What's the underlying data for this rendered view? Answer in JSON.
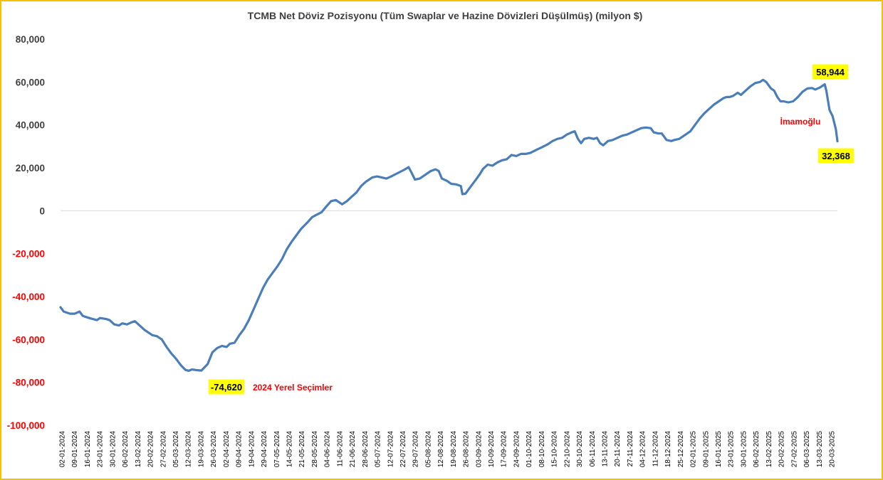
{
  "chart_data": {
    "type": "line",
    "title": "TCMB Net Döviz Pozisyonu (Tüm Swaplar ve Hazine Dövizleri Düşülmüş) (milyon $)",
    "xlabel": "",
    "ylabel": "",
    "ylim": [
      -100000,
      80000
    ],
    "y_ticks": [
      {
        "value": 80000,
        "label": "80,000"
      },
      {
        "value": 60000,
        "label": "60,000"
      },
      {
        "value": 40000,
        "label": "40,000"
      },
      {
        "value": 20000,
        "label": "20,000"
      },
      {
        "value": 0,
        "label": "0"
      },
      {
        "value": -20000,
        "label": "-20,000"
      },
      {
        "value": -40000,
        "label": "-40,000"
      },
      {
        "value": -60000,
        "label": "-60,000"
      },
      {
        "value": -80000,
        "label": "-80,000"
      },
      {
        "value": -100000,
        "label": "-100,000"
      }
    ],
    "x_ticks": [
      "02-01-2024",
      "09-01-2024",
      "16-01-2024",
      "23-01-2024",
      "30-01-2024",
      "06-02-2024",
      "13-02-2024",
      "20-02-2024",
      "27-02-2024",
      "05-03-2024",
      "12-03-2024",
      "19-03-2024",
      "26-03-2024",
      "02-04-2024",
      "09-04-2024",
      "19-04-2024",
      "29-04-2024",
      "07-05-2024",
      "14-05-2024",
      "21-05-2024",
      "28-05-2024",
      "04-06-2024",
      "11-06-2024",
      "21-06-2024",
      "28-06-2024",
      "05-07-2024",
      "12-07-2024",
      "22-07-2024",
      "29-07-2024",
      "05-08-2024",
      "12-08-2024",
      "19-08-2024",
      "26-08-2024",
      "03-09-2024",
      "10-09-2024",
      "17-09-2024",
      "24-09-2024",
      "01-10-2024",
      "08-10-2024",
      "15-10-2024",
      "22-10-2024",
      "30-10-2024",
      "06-11-2024",
      "13-11-2024",
      "20-11-2024",
      "27-11-2024",
      "04-12-2024",
      "11-12-2024",
      "18-12-2024",
      "25-12-2024",
      "02-01-2025",
      "09-01-2025",
      "16-01-2025",
      "23-01-2025",
      "30-01-2025",
      "06-02-2025",
      "13-02-2025",
      "20-02-2025",
      "27-02-2025",
      "06-03-2025",
      "13-03-2025",
      "20-03-2025"
    ],
    "gridlines": false,
    "zero_line": true,
    "series": [
      {
        "color": "#4a7ebb",
        "points": [
          [
            "02-01-2024",
            -45000
          ],
          [
            "04-01-2024",
            -47000
          ],
          [
            "08-01-2024",
            -48000
          ],
          [
            "11-01-2024",
            -48000
          ],
          [
            "14-01-2024",
            -47000
          ],
          [
            "16-01-2024",
            -49000
          ],
          [
            "18-01-2024",
            -49500
          ],
          [
            "21-01-2024",
            -50200
          ],
          [
            "25-01-2024",
            -51000
          ],
          [
            "27-01-2024",
            -50000
          ],
          [
            "31-01-2024",
            -50500
          ],
          [
            "02-02-2024",
            -51000
          ],
          [
            "05-02-2024",
            -53000
          ],
          [
            "08-02-2024",
            -53500
          ],
          [
            "10-02-2024",
            -52500
          ],
          [
            "13-02-2024",
            -53000
          ],
          [
            "16-02-2024",
            -52000
          ],
          [
            "18-02-2024",
            -51500
          ],
          [
            "21-02-2024",
            -53500
          ],
          [
            "24-02-2024",
            -55500
          ],
          [
            "27-02-2024",
            -57000
          ],
          [
            "29-02-2024",
            -58000
          ],
          [
            "03-03-2024",
            -58500
          ],
          [
            "06-03-2024",
            -60000
          ],
          [
            "09-03-2024",
            -63500
          ],
          [
            "12-03-2024",
            -66500
          ],
          [
            "15-03-2024",
            -69000
          ],
          [
            "18-03-2024",
            -72000
          ],
          [
            "21-03-2024",
            -74200
          ],
          [
            "23-03-2024",
            -74620
          ],
          [
            "25-03-2024",
            -74000
          ],
          [
            "28-03-2024",
            -74300
          ],
          [
            "31-03-2024",
            -74500
          ],
          [
            "04-04-2024",
            -71500
          ],
          [
            "07-04-2024",
            -66000
          ],
          [
            "10-04-2024",
            -64000
          ],
          [
            "13-04-2024",
            -63000
          ],
          [
            "16-04-2024",
            -63500
          ],
          [
            "18-04-2024",
            -62000
          ],
          [
            "21-04-2024",
            -61500
          ],
          [
            "24-04-2024",
            -58000
          ],
          [
            "27-04-2024",
            -55000
          ],
          [
            "30-04-2024",
            -51000
          ],
          [
            "03-05-2024",
            -46000
          ],
          [
            "06-05-2024",
            -41000
          ],
          [
            "09-05-2024",
            -36000
          ],
          [
            "12-05-2024",
            -32000
          ],
          [
            "15-05-2024",
            -29000
          ],
          [
            "18-05-2024",
            -26000
          ],
          [
            "21-05-2024",
            -22500
          ],
          [
            "24-05-2024",
            -18000
          ],
          [
            "27-05-2024",
            -14500
          ],
          [
            "30-05-2024",
            -11500
          ],
          [
            "02-06-2024",
            -8500
          ],
          [
            "06-06-2024",
            -5500
          ],
          [
            "09-06-2024",
            -3000
          ],
          [
            "12-06-2024",
            -1800
          ],
          [
            "15-06-2024",
            -700
          ],
          [
            "18-06-2024",
            2000
          ],
          [
            "21-06-2024",
            4500
          ],
          [
            "24-06-2024",
            5000
          ],
          [
            "26-06-2024",
            4000
          ],
          [
            "28-06-2024",
            3000
          ],
          [
            "01-07-2024",
            4500
          ],
          [
            "04-07-2024",
            6500
          ],
          [
            "07-07-2024",
            8500
          ],
          [
            "10-07-2024",
            11500
          ],
          [
            "13-07-2024",
            13500
          ],
          [
            "17-07-2024",
            15500
          ],
          [
            "20-07-2024",
            16000
          ],
          [
            "23-07-2024",
            15500
          ],
          [
            "26-07-2024",
            15000
          ],
          [
            "29-07-2024",
            16000
          ],
          [
            "02-08-2024",
            17500
          ],
          [
            "06-08-2024",
            19000
          ],
          [
            "09-08-2024",
            20300
          ],
          [
            "11-08-2024",
            17500
          ],
          [
            "13-08-2024",
            14500
          ],
          [
            "16-08-2024",
            15000
          ],
          [
            "19-08-2024",
            16500
          ],
          [
            "23-08-2024",
            18500
          ],
          [
            "26-08-2024",
            19300
          ],
          [
            "28-08-2024",
            18500
          ],
          [
            "30-08-2024",
            15000
          ],
          [
            "02-09-2024",
            14000
          ],
          [
            "05-09-2024",
            12500
          ],
          [
            "08-09-2024",
            12300
          ],
          [
            "11-09-2024",
            11500
          ],
          [
            "12-09-2024",
            7700
          ],
          [
            "14-09-2024",
            8000
          ],
          [
            "17-09-2024",
            11000
          ],
          [
            "20-09-2024",
            14000
          ],
          [
            "23-09-2024",
            17000
          ],
          [
            "25-09-2024",
            19500
          ],
          [
            "28-09-2024",
            21500
          ],
          [
            "01-10-2024",
            21000
          ],
          [
            "04-10-2024",
            22500
          ],
          [
            "07-10-2024",
            23500
          ],
          [
            "10-10-2024",
            24000
          ],
          [
            "13-10-2024",
            26000
          ],
          [
            "16-10-2024",
            25500
          ],
          [
            "19-10-2024",
            26500
          ],
          [
            "22-10-2024",
            26500
          ],
          [
            "25-10-2024",
            27000
          ],
          [
            "29-10-2024",
            28500
          ],
          [
            "01-11-2024",
            29500
          ],
          [
            "05-11-2024",
            31000
          ],
          [
            "08-11-2024",
            32500
          ],
          [
            "11-11-2024",
            33500
          ],
          [
            "14-11-2024",
            34000
          ],
          [
            "17-11-2024",
            35500
          ],
          [
            "20-11-2024",
            36500
          ],
          [
            "22-11-2024",
            37000
          ],
          [
            "24-11-2024",
            33500
          ],
          [
            "26-11-2024",
            31500
          ],
          [
            "28-11-2024",
            33500
          ],
          [
            "01-12-2024",
            34000
          ],
          [
            "04-12-2024",
            33500
          ],
          [
            "06-12-2024",
            34000
          ],
          [
            "08-12-2024",
            31500
          ],
          [
            "10-12-2024",
            30500
          ],
          [
            "13-12-2024",
            32500
          ],
          [
            "16-12-2024",
            33000
          ],
          [
            "19-12-2024",
            34000
          ],
          [
            "22-12-2024",
            35000
          ],
          [
            "25-12-2024",
            35500
          ],
          [
            "28-12-2024",
            36500
          ],
          [
            "31-12-2024",
            37500
          ],
          [
            "03-01-2025",
            38500
          ],
          [
            "06-01-2025",
            38800
          ],
          [
            "09-01-2025",
            38500
          ],
          [
            "11-01-2025",
            36500
          ],
          [
            "14-01-2025",
            36000
          ],
          [
            "16-01-2025",
            36000
          ],
          [
            "19-01-2025",
            33000
          ],
          [
            "22-01-2025",
            32500
          ],
          [
            "24-01-2025",
            33000
          ],
          [
            "27-01-2025",
            33500
          ],
          [
            "30-01-2025",
            35000
          ],
          [
            "03-02-2025",
            37000
          ],
          [
            "06-02-2025",
            40000
          ],
          [
            "09-02-2025",
            43000
          ],
          [
            "12-02-2025",
            45500
          ],
          [
            "15-02-2025",
            47500
          ],
          [
            "18-02-2025",
            49500
          ],
          [
            "21-02-2025",
            51000
          ],
          [
            "24-02-2025",
            52500
          ],
          [
            "26-02-2025",
            53000
          ],
          [
            "28-02-2025",
            53000
          ],
          [
            "02-03-2025",
            53500
          ],
          [
            "05-03-2025",
            55000
          ],
          [
            "07-03-2025",
            54000
          ],
          [
            "10-03-2025",
            56000
          ],
          [
            "13-03-2025",
            58000
          ],
          [
            "16-03-2025",
            59500
          ],
          [
            "19-03-2025",
            60000
          ],
          [
            "21-03-2025",
            61000
          ],
          [
            "23-03-2025",
            60000
          ],
          [
            "26-03-2025",
            57000
          ],
          [
            "28-03-2025",
            56000
          ],
          [
            "30-03-2025",
            53000
          ],
          [
            "01-04-2025",
            51000
          ],
          [
            "03-04-2025",
            51000
          ],
          [
            "06-04-2025",
            50500
          ],
          [
            "09-04-2025",
            51000
          ],
          [
            "12-04-2025",
            53000
          ],
          [
            "15-04-2025",
            55500
          ],
          [
            "18-04-2025",
            57000
          ],
          [
            "21-04-2025",
            57200
          ],
          [
            "23-04-2025",
            56500
          ],
          [
            "26-04-2025",
            57500
          ],
          [
            "29-04-2025",
            58944
          ],
          [
            "30-04-2025",
            56000
          ],
          [
            "02-05-2025",
            47000
          ],
          [
            "04-05-2025",
            44000
          ],
          [
            "06-05-2025",
            38000
          ],
          [
            "07-05-2025",
            32368
          ]
        ]
      }
    ],
    "annotations": [
      {
        "text": "-74,620",
        "style": "yellow-box",
        "value": -74620
      },
      {
        "text": "2024 Yerel Seçimler",
        "style": "red-text"
      },
      {
        "text": "58,944",
        "style": "yellow-box",
        "value": 58944
      },
      {
        "text": "İmamoğlu",
        "style": "red-text"
      },
      {
        "text": "32,368",
        "style": "yellow-box",
        "value": 32368
      }
    ],
    "colors": {
      "line": "#4a7ebb",
      "negative_label": "#ff0000",
      "positive_label": "#404040",
      "highlight": "#ffff00",
      "frame": "#f2c200",
      "zero_line": "#d9d9d9"
    }
  }
}
